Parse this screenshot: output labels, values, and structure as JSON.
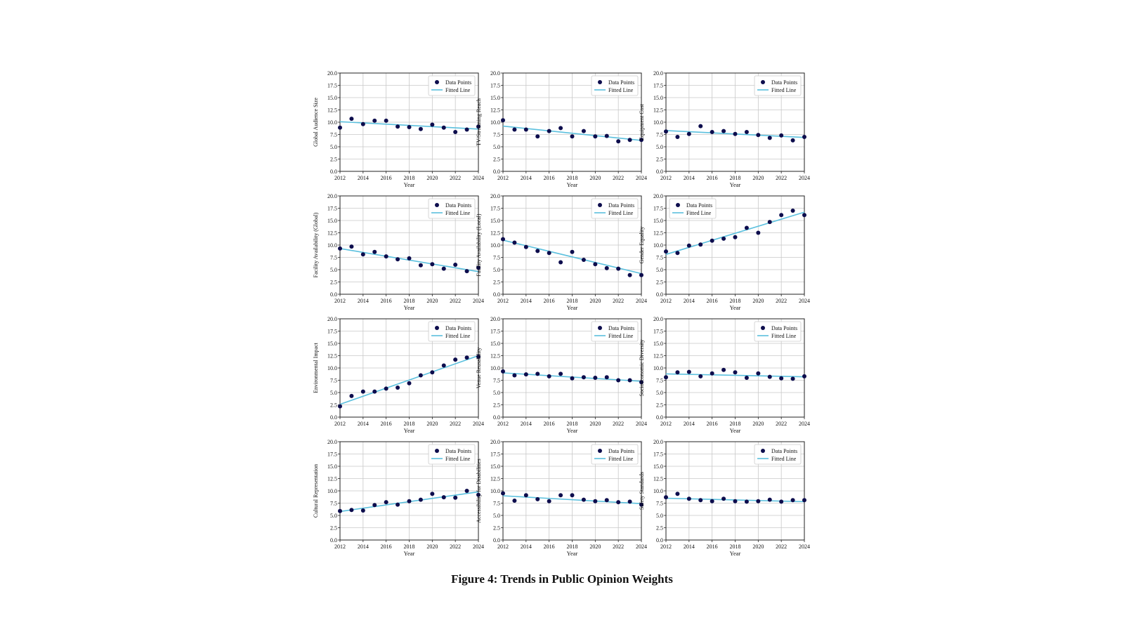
{
  "caption": "Figure 4: Trends in Public Opinion Weights",
  "colors": {
    "points": "#0d0d4d",
    "fitted_line": "#5bc0de",
    "grid": "#c8c8c8",
    "axis": "#222222"
  },
  "chart_data": [
    {
      "type": "scatter",
      "xlabel": "Year",
      "ylabel": "Global Audience Size",
      "ylim": [
        0,
        20
      ],
      "xlim": [
        2012,
        2024
      ],
      "x_ticks": [
        2012,
        2014,
        2016,
        2018,
        2020,
        2022,
        2024
      ],
      "y_ticks": [
        0.0,
        2.5,
        5.0,
        7.5,
        10.0,
        12.5,
        15.0,
        17.5,
        20.0
      ],
      "grid": true,
      "legend": "top-right",
      "series": [
        {
          "name": "Data Points",
          "x": [
            2012,
            2013,
            2014,
            2015,
            2016,
            2017,
            2018,
            2019,
            2020,
            2021,
            2022,
            2023,
            2024
          ],
          "y": [
            8.9,
            10.7,
            9.6,
            10.3,
            10.3,
            9.1,
            9.0,
            8.6,
            9.5,
            8.9,
            8.0,
            8.5,
            9.1
          ]
        },
        {
          "name": "Fitted Line",
          "x": [
            2012,
            2024
          ],
          "y": [
            10.1,
            8.6
          ]
        }
      ]
    },
    {
      "type": "scatter",
      "xlabel": "Year",
      "ylabel": "TV/Streaming Reach",
      "ylim": [
        0,
        20
      ],
      "xlim": [
        2012,
        2024
      ],
      "x_ticks": [
        2012,
        2014,
        2016,
        2018,
        2020,
        2022,
        2024
      ],
      "y_ticks": [
        0.0,
        2.5,
        5.0,
        7.5,
        10.0,
        12.5,
        15.0,
        17.5,
        20.0
      ],
      "grid": true,
      "legend": "top-right",
      "series": [
        {
          "name": "Data Points",
          "x": [
            2012,
            2013,
            2014,
            2015,
            2016,
            2017,
            2018,
            2019,
            2020,
            2021,
            2022,
            2023,
            2024
          ],
          "y": [
            10.4,
            8.5,
            8.5,
            7.1,
            8.2,
            8.8,
            7.1,
            8.2,
            7.1,
            7.2,
            6.1,
            6.4,
            6.4
          ]
        },
        {
          "name": "Fitted Line",
          "x": [
            2012,
            2024
          ],
          "y": [
            9.2,
            6.3
          ]
        }
      ]
    },
    {
      "type": "scatter",
      "xlabel": "Year",
      "ylabel": "Equipment Cost",
      "ylim": [
        0,
        20
      ],
      "xlim": [
        2012,
        2024
      ],
      "x_ticks": [
        2012,
        2014,
        2016,
        2018,
        2020,
        2022,
        2024
      ],
      "y_ticks": [
        0.0,
        2.5,
        5.0,
        7.5,
        10.0,
        12.5,
        15.0,
        17.5,
        20.0
      ],
      "grid": true,
      "legend": "top-right",
      "series": [
        {
          "name": "Data Points",
          "x": [
            2012,
            2013,
            2014,
            2015,
            2016,
            2017,
            2018,
            2019,
            2020,
            2021,
            2022,
            2023,
            2024
          ],
          "y": [
            8.1,
            7.0,
            7.6,
            9.2,
            8.0,
            8.2,
            7.6,
            8.0,
            7.4,
            6.8,
            7.3,
            6.3,
            7.0
          ]
        },
        {
          "name": "Fitted Line",
          "x": [
            2012,
            2024
          ],
          "y": [
            8.3,
            6.9
          ]
        }
      ]
    },
    {
      "type": "scatter",
      "xlabel": "Year",
      "ylabel": "Facility Availability (Global)",
      "ylim": [
        0,
        20
      ],
      "xlim": [
        2012,
        2024
      ],
      "x_ticks": [
        2012,
        2014,
        2016,
        2018,
        2020,
        2022,
        2024
      ],
      "y_ticks": [
        0.0,
        2.5,
        5.0,
        7.5,
        10.0,
        12.5,
        15.0,
        17.5,
        20.0
      ],
      "grid": true,
      "legend": "top-right",
      "series": [
        {
          "name": "Data Points",
          "x": [
            2012,
            2013,
            2014,
            2015,
            2016,
            2017,
            2018,
            2019,
            2020,
            2021,
            2022,
            2023,
            2024
          ],
          "y": [
            9.3,
            9.7,
            8.1,
            8.6,
            7.7,
            7.1,
            7.3,
            5.9,
            6.1,
            5.2,
            6.0,
            4.7,
            5.4
          ]
        },
        {
          "name": "Fitted Line",
          "x": [
            2012,
            2024
          ],
          "y": [
            9.3,
            4.6
          ]
        }
      ]
    },
    {
      "type": "scatter",
      "xlabel": "Year",
      "ylabel": "Facility Availability (Local)",
      "ylim": [
        0,
        20
      ],
      "xlim": [
        2012,
        2024
      ],
      "x_ticks": [
        2012,
        2014,
        2016,
        2018,
        2020,
        2022,
        2024
      ],
      "y_ticks": [
        0.0,
        2.5,
        5.0,
        7.5,
        10.0,
        12.5,
        15.0,
        17.5,
        20.0
      ],
      "grid": true,
      "legend": "top-right",
      "series": [
        {
          "name": "Data Points",
          "x": [
            2012,
            2013,
            2014,
            2015,
            2016,
            2017,
            2018,
            2019,
            2020,
            2021,
            2022,
            2023,
            2024
          ],
          "y": [
            11.2,
            10.5,
            9.6,
            8.8,
            8.4,
            6.5,
            8.6,
            7.0,
            6.1,
            5.3,
            5.2,
            3.9,
            3.9
          ]
        },
        {
          "name": "Fitted Line",
          "x": [
            2012,
            2024
          ],
          "y": [
            11.0,
            4.2
          ]
        }
      ]
    },
    {
      "type": "scatter",
      "xlabel": "Year",
      "ylabel": "Gender Equality",
      "ylim": [
        0,
        20
      ],
      "xlim": [
        2012,
        2024
      ],
      "x_ticks": [
        2012,
        2014,
        2016,
        2018,
        2020,
        2022,
        2024
      ],
      "y_ticks": [
        0.0,
        2.5,
        5.0,
        7.5,
        10.0,
        12.5,
        15.0,
        17.5,
        20.0
      ],
      "grid": true,
      "legend": "top-left",
      "series": [
        {
          "name": "Data Points",
          "x": [
            2012,
            2013,
            2014,
            2015,
            2016,
            2017,
            2018,
            2019,
            2020,
            2021,
            2022,
            2023,
            2024
          ],
          "y": [
            8.7,
            8.4,
            9.9,
            10.1,
            10.9,
            11.3,
            11.6,
            13.5,
            12.5,
            14.7,
            16.1,
            17.0,
            16.1
          ]
        },
        {
          "name": "Fitted Line",
          "x": [
            2012,
            2024
          ],
          "y": [
            8.1,
            16.7
          ]
        }
      ]
    },
    {
      "type": "scatter",
      "xlabel": "Year",
      "ylabel": "Environmental Impact",
      "ylim": [
        0,
        20
      ],
      "xlim": [
        2012,
        2024
      ],
      "x_ticks": [
        2012,
        2014,
        2016,
        2018,
        2020,
        2022,
        2024
      ],
      "y_ticks": [
        0.0,
        2.5,
        5.0,
        7.5,
        10.0,
        12.5,
        15.0,
        17.5,
        20.0
      ],
      "grid": true,
      "legend": "top-right",
      "series": [
        {
          "name": "Data Points",
          "x": [
            2012,
            2013,
            2014,
            2015,
            2016,
            2017,
            2018,
            2019,
            2020,
            2021,
            2022,
            2023,
            2024
          ],
          "y": [
            2.2,
            4.3,
            5.2,
            5.2,
            5.8,
            6.0,
            6.9,
            8.5,
            9.1,
            10.5,
            11.7,
            12.1,
            12.3
          ]
        },
        {
          "name": "Fitted Line",
          "x": [
            2012,
            2024
          ],
          "y": [
            2.6,
            12.5
          ]
        }
      ]
    },
    {
      "type": "scatter",
      "xlabel": "Year",
      "ylabel": "Venue Reusability",
      "ylim": [
        0,
        20
      ],
      "xlim": [
        2012,
        2024
      ],
      "x_ticks": [
        2012,
        2014,
        2016,
        2018,
        2020,
        2022,
        2024
      ],
      "y_ticks": [
        0.0,
        2.5,
        5.0,
        7.5,
        10.0,
        12.5,
        15.0,
        17.5,
        20.0
      ],
      "grid": true,
      "legend": "top-right",
      "series": [
        {
          "name": "Data Points",
          "x": [
            2012,
            2013,
            2014,
            2015,
            2016,
            2017,
            2018,
            2019,
            2020,
            2021,
            2022,
            2023,
            2024
          ],
          "y": [
            9.3,
            8.5,
            8.7,
            8.8,
            8.3,
            8.8,
            7.9,
            8.1,
            8.0,
            8.1,
            7.5,
            7.5,
            7.1
          ]
        },
        {
          "name": "Fitted Line",
          "x": [
            2012,
            2024
          ],
          "y": [
            9.0,
            7.3
          ]
        }
      ]
    },
    {
      "type": "scatter",
      "xlabel": "Year",
      "ylabel": "Socioeconomic Diversity",
      "ylim": [
        0,
        20
      ],
      "xlim": [
        2012,
        2024
      ],
      "x_ticks": [
        2012,
        2014,
        2016,
        2018,
        2020,
        2022,
        2024
      ],
      "y_ticks": [
        0.0,
        2.5,
        5.0,
        7.5,
        10.0,
        12.5,
        15.0,
        17.5,
        20.0
      ],
      "grid": true,
      "legend": "top-right",
      "series": [
        {
          "name": "Data Points",
          "x": [
            2012,
            2013,
            2014,
            2015,
            2016,
            2017,
            2018,
            2019,
            2020,
            2021,
            2022,
            2023,
            2024
          ],
          "y": [
            8.1,
            9.1,
            9.2,
            8.3,
            8.9,
            9.6,
            9.1,
            8.0,
            8.9,
            8.2,
            7.9,
            7.8,
            8.3
          ]
        },
        {
          "name": "Fitted Line",
          "x": [
            2012,
            2024
          ],
          "y": [
            8.8,
            8.2
          ]
        }
      ]
    },
    {
      "type": "scatter",
      "xlabel": "Year",
      "ylabel": "Cultural Representation",
      "ylim": [
        0,
        20
      ],
      "xlim": [
        2012,
        2024
      ],
      "x_ticks": [
        2012,
        2014,
        2016,
        2018,
        2020,
        2022,
        2024
      ],
      "y_ticks": [
        0.0,
        2.5,
        5.0,
        7.5,
        10.0,
        12.5,
        15.0,
        17.5,
        20.0
      ],
      "grid": true,
      "legend": "top-right",
      "series": [
        {
          "name": "Data Points",
          "x": [
            2012,
            2013,
            2014,
            2015,
            2016,
            2017,
            2018,
            2019,
            2020,
            2021,
            2022,
            2023,
            2024
          ],
          "y": [
            5.9,
            6.1,
            6.0,
            7.1,
            7.7,
            7.2,
            7.9,
            8.2,
            9.4,
            8.7,
            8.6,
            10.0,
            9.2
          ]
        },
        {
          "name": "Fitted Line",
          "x": [
            2012,
            2024
          ],
          "y": [
            5.8,
            9.8
          ]
        }
      ]
    },
    {
      "type": "scatter",
      "xlabel": "Year",
      "ylabel": "Accessibility for Disabilities",
      "ylim": [
        0,
        20
      ],
      "xlim": [
        2012,
        2024
      ],
      "x_ticks": [
        2012,
        2014,
        2016,
        2018,
        2020,
        2022,
        2024
      ],
      "y_ticks": [
        0.0,
        2.5,
        5.0,
        7.5,
        10.0,
        12.5,
        15.0,
        17.5,
        20.0
      ],
      "grid": true,
      "legend": "top-right",
      "series": [
        {
          "name": "Data Points",
          "x": [
            2012,
            2013,
            2014,
            2015,
            2016,
            2017,
            2018,
            2019,
            2020,
            2021,
            2022,
            2023,
            2024
          ],
          "y": [
            9.5,
            8.0,
            9.1,
            8.3,
            7.9,
            9.1,
            9.1,
            8.2,
            7.9,
            8.1,
            7.7,
            7.8,
            7.2
          ]
        },
        {
          "name": "Fitted Line",
          "x": [
            2012,
            2024
          ],
          "y": [
            9.0,
            7.4
          ]
        }
      ]
    },
    {
      "type": "scatter",
      "xlabel": "Year",
      "ylabel": "Safety Standards",
      "ylim": [
        0,
        20
      ],
      "xlim": [
        2012,
        2024
      ],
      "x_ticks": [
        2012,
        2014,
        2016,
        2018,
        2020,
        2022,
        2024
      ],
      "y_ticks": [
        0.0,
        2.5,
        5.0,
        7.5,
        10.0,
        12.5,
        15.0,
        17.5,
        20.0
      ],
      "grid": true,
      "legend": "top-right",
      "series": [
        {
          "name": "Data Points",
          "x": [
            2012,
            2013,
            2014,
            2015,
            2016,
            2017,
            2018,
            2019,
            2020,
            2021,
            2022,
            2023,
            2024
          ],
          "y": [
            8.7,
            9.4,
            8.4,
            8.1,
            7.9,
            8.4,
            7.9,
            7.8,
            7.9,
            8.2,
            7.8,
            8.1,
            8.1
          ]
        },
        {
          "name": "Fitted Line",
          "x": [
            2012,
            2024
          ],
          "y": [
            8.5,
            7.8
          ]
        }
      ]
    }
  ]
}
